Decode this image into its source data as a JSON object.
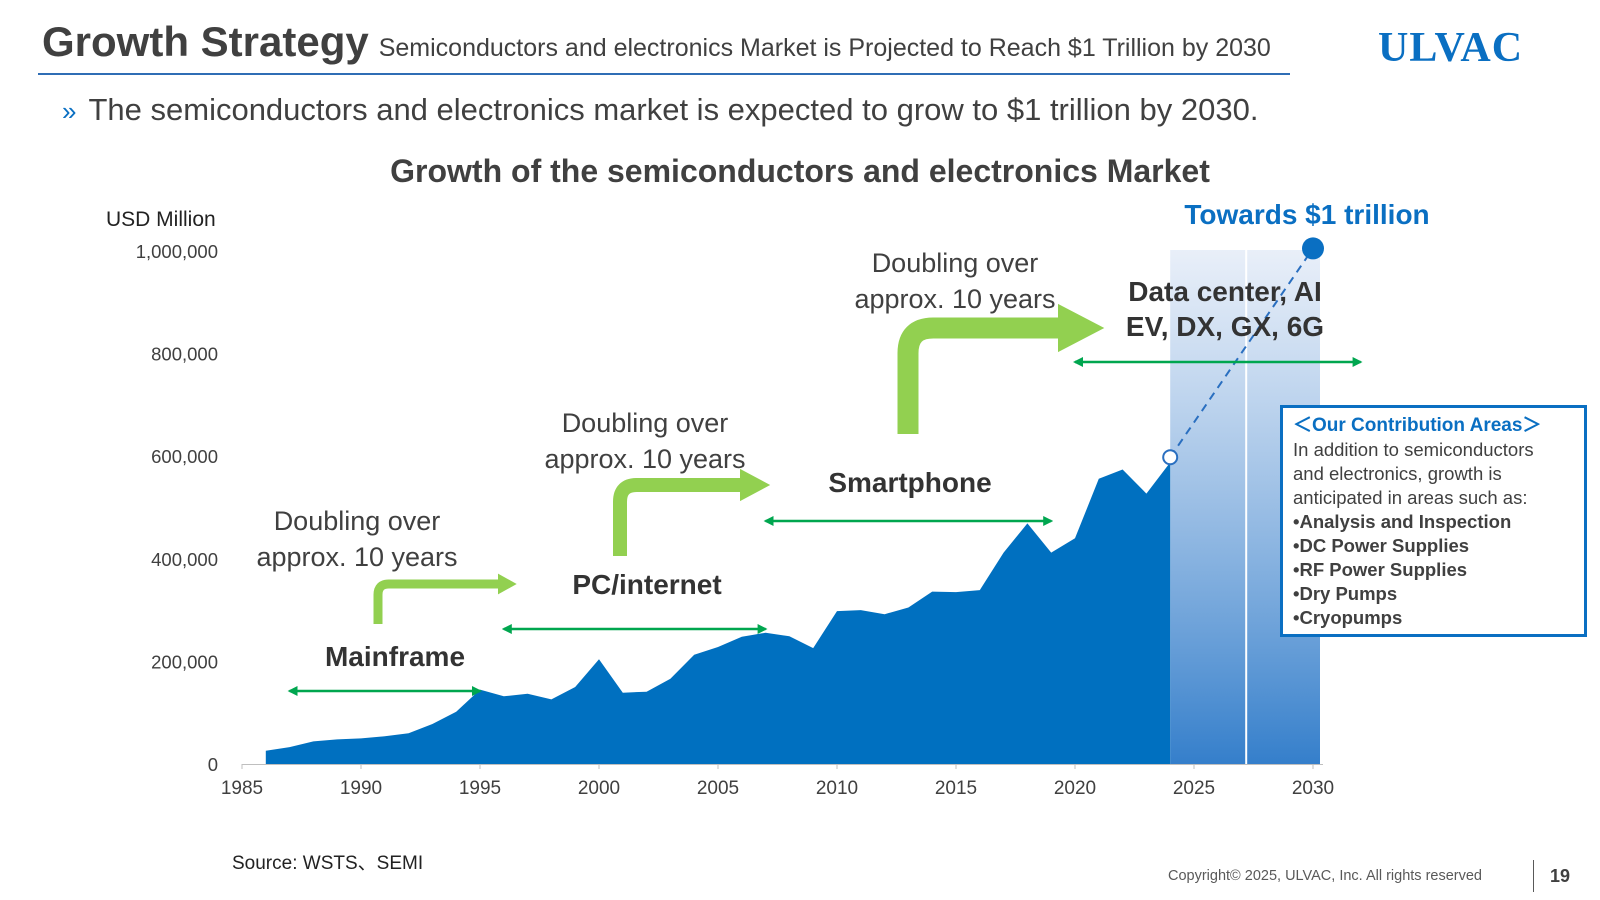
{
  "header": {
    "title": "Growth Strategy",
    "subtitle": "Semiconductors and electronics Market is Projected to Reach $1 Trillion by 2030",
    "logo": "ULVAC"
  },
  "bullet": {
    "text": "The semiconductors and electronics market is expected to grow to $1 trillion by 2030.",
    "icon": "double-chevron-right-icon"
  },
  "contribution_box": {
    "heading": "＜Our Contribution Areas＞",
    "intro_lines": [
      "In addition to semiconductors",
      "and electronics, growth is",
      "anticipated in areas such as:"
    ],
    "items": [
      "•Analysis and Inspection",
      "•DC Power Supplies",
      "•RF Power Supplies",
      "•Dry Pumps",
      "•Cryopumps"
    ]
  },
  "footer": {
    "source": "Source: WSTS、SEMI",
    "copyright": "Copyright© 2025, ULVAC, Inc. All rights reserved",
    "page_number": "19"
  },
  "colors": {
    "accent": "#0a6fc2",
    "area": "#0070c0",
    "arrow_green": "#92d050",
    "era_arrow": "#00a64f",
    "text": "#404040"
  },
  "chart_data": {
    "type": "area",
    "title": "Growth of the semiconductors and electronics Market",
    "ylabel": "USD Million",
    "xlim": [
      1985,
      2030
    ],
    "ylim": [
      0,
      1000000
    ],
    "x_ticks": [
      1985,
      1990,
      1995,
      2000,
      2005,
      2010,
      2015,
      2020,
      2025,
      2030
    ],
    "x_tick_labels": [
      "1985",
      "1990",
      "1995",
      "2000",
      "2005",
      "2010",
      "2015",
      "2020",
      "2025",
      "2030"
    ],
    "y_ticks": [
      0,
      200000,
      400000,
      600000,
      800000,
      1000000
    ],
    "y_tick_labels": [
      "0",
      "200,000",
      "400,000",
      "600,000",
      "800,000",
      "1,000,000"
    ],
    "series": [
      {
        "x": [
          1986,
          1987,
          1988,
          1989,
          1990,
          1991,
          1992,
          1993,
          1994,
          1995,
          1996,
          1997,
          1998,
          1999,
          2000,
          2001,
          2002,
          2003,
          2004,
          2005,
          2006,
          2007,
          2008,
          2009,
          2010,
          2011,
          2012,
          2013,
          2014,
          2015,
          2016,
          2017,
          2018,
          2019,
          2020,
          2021,
          2022,
          2023,
          2024
        ],
        "y": [
          26000,
          33000,
          44000,
          48000,
          50000,
          54000,
          60000,
          78000,
          102000,
          145000,
          132000,
          137000,
          126000,
          150000,
          204000,
          139000,
          141000,
          166000,
          213000,
          228000,
          248000,
          256000,
          249000,
          226000,
          298000,
          300000,
          292000,
          305000,
          336000,
          335000,
          339000,
          412000,
          469000,
          412000,
          440000,
          556000,
          574000,
          527000,
          588000
        ]
      }
    ],
    "projection": {
      "x": [
        2024,
        2030
      ],
      "y": [
        598000,
        1005000
      ],
      "style": "dashed",
      "end_label": "Towards $1 trillion"
    },
    "forecast_band": {
      "x": [
        2024,
        2030
      ]
    },
    "eras": [
      {
        "label": "Mainframe",
        "x": [
          1987,
          1995
        ]
      },
      {
        "label": "PC/internet",
        "x": [
          1996,
          2007
        ]
      },
      {
        "label": "Smartphone",
        "x": [
          2007,
          2019
        ]
      },
      {
        "label_lines": [
          "Data center, AI",
          "EV, DX, GX, 6G"
        ],
        "x": [
          2020,
          2032
        ]
      }
    ],
    "doubling_labels": [
      {
        "lines": [
          "Doubling over",
          "approx. 10 years"
        ]
      },
      {
        "lines": [
          "Doubling over",
          "approx. 10 years"
        ]
      },
      {
        "lines": [
          "Doubling over",
          "approx. 10 years"
        ]
      }
    ]
  }
}
